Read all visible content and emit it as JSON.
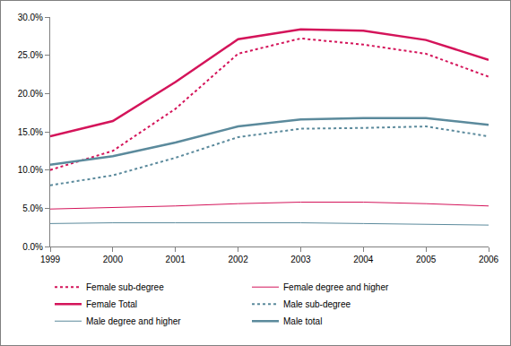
{
  "chart_data": {
    "type": "line",
    "categories": [
      "1999",
      "2000",
      "2001",
      "2002",
      "2003",
      "2004",
      "2005",
      "2006"
    ],
    "series": [
      {
        "name": "Female sub-degree",
        "color": "#d4145a",
        "line_style": "dotted",
        "values": [
          10.0,
          12.5,
          18.0,
          25.2,
          27.2,
          26.4,
          25.2,
          22.2
        ]
      },
      {
        "name": "Female degree and higher",
        "color": "#d4145a",
        "line_style": "solid",
        "values": [
          4.9,
          5.1,
          5.3,
          5.6,
          5.8,
          5.8,
          5.6,
          5.3
        ]
      },
      {
        "name": "Female Total",
        "color": "#d4145a",
        "line_style": "thick",
        "values": [
          14.4,
          16.4,
          21.5,
          27.1,
          28.4,
          28.2,
          27.0,
          24.4
        ]
      },
      {
        "name": "Male sub-degree",
        "color": "#5b8a9c",
        "line_style": "dotted",
        "values": [
          8.0,
          9.3,
          11.6,
          14.3,
          15.4,
          15.5,
          15.7,
          14.4
        ]
      },
      {
        "name": "Male degree and higher",
        "color": "#5b8a9c",
        "line_style": "solid",
        "values": [
          3.0,
          3.1,
          3.1,
          3.1,
          3.1,
          3.0,
          2.9,
          2.8
        ]
      },
      {
        "name": "Male total",
        "color": "#5b8a9c",
        "line_style": "thick",
        "values": [
          10.7,
          11.8,
          13.6,
          15.7,
          16.6,
          16.8,
          16.8,
          15.9
        ]
      }
    ],
    "ylim": [
      0,
      30
    ],
    "yticks": [
      {
        "value": 0,
        "label": "0.0%"
      },
      {
        "value": 5,
        "label": "5.0%"
      },
      {
        "value": 10,
        "label": "10.0%"
      },
      {
        "value": 15,
        "label": "15.0%"
      },
      {
        "value": 20,
        "label": "20.0%"
      },
      {
        "value": 25,
        "label": "25.0%"
      },
      {
        "value": 30,
        "label": "30.0%"
      }
    ],
    "grid": false,
    "legend": "bottom"
  }
}
